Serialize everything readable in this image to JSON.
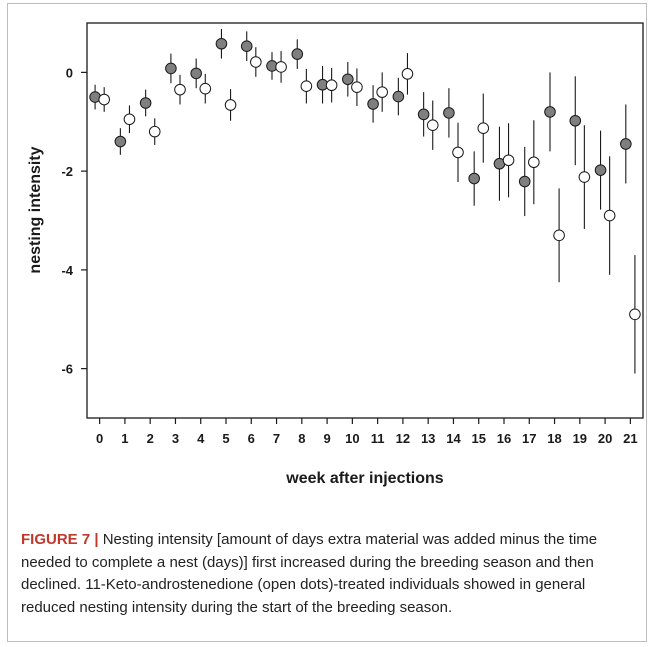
{
  "figure": {
    "caption_label": "FIGURE 7 |",
    "caption_text": " Nesting intensity [amount of days extra material was added minus the time needed to complete a nest (days)] first increased during the breeding season and then declined. 11-Keto-androstenedione (open dots)-treated individuals showed in general reduced nesting intensity during the start of the breeding season."
  },
  "colors": {
    "filled_dot": "#7f7f7f",
    "open_dot": "#ffffff",
    "stroke": "#1a1a1a"
  },
  "chart_data": {
    "type": "scatter",
    "xlabel": "week after injections",
    "ylabel": "nesting intensity",
    "ylim": [
      -7,
      1
    ],
    "xlim": [
      -0.5,
      21.5
    ],
    "x_ticks": [
      0,
      1,
      2,
      3,
      4,
      5,
      6,
      7,
      8,
      9,
      10,
      11,
      12,
      13,
      14,
      15,
      16,
      17,
      18,
      19,
      20,
      21
    ],
    "y_ticks": [
      0,
      -2,
      -4,
      -6
    ],
    "error_bars": true,
    "series": [
      {
        "marker": "filled",
        "x": [
          0,
          1,
          2,
          3,
          4,
          5,
          6,
          7,
          8,
          9,
          10,
          11,
          12,
          13,
          14,
          15,
          16,
          17,
          18,
          19,
          20,
          21
        ],
        "y": [
          -0.5,
          -1.4,
          -0.62,
          0.08,
          -0.02,
          0.58,
          0.53,
          0.13,
          0.37,
          -0.25,
          -0.14,
          -0.64,
          -0.49,
          -0.85,
          -0.82,
          -2.15,
          -1.85,
          -2.21,
          -0.8,
          -0.98,
          -1.98,
          -1.45
        ],
        "yerr": [
          0.25,
          0.27,
          0.27,
          0.3,
          0.3,
          0.3,
          0.3,
          0.28,
          0.3,
          0.38,
          0.35,
          0.38,
          0.38,
          0.45,
          0.5,
          0.55,
          0.75,
          0.7,
          0.8,
          0.9,
          0.8,
          0.8
        ]
      },
      {
        "marker": "open",
        "x": [
          0,
          1,
          2,
          3,
          4,
          5,
          6,
          7,
          8,
          9,
          10,
          11,
          12,
          13,
          14,
          15,
          16,
          17,
          18,
          19,
          20,
          21
        ],
        "y": [
          -0.55,
          -0.95,
          -1.2,
          -0.35,
          -0.33,
          -0.66,
          0.21,
          0.11,
          -0.28,
          -0.26,
          -0.3,
          -0.4,
          -0.03,
          -1.07,
          -1.62,
          -1.13,
          -1.78,
          -1.82,
          -3.3,
          -2.12,
          -2.9,
          -4.9
        ],
        "yerr": [
          0.25,
          0.28,
          0.27,
          0.3,
          0.3,
          0.32,
          0.3,
          0.32,
          0.35,
          0.35,
          0.38,
          0.4,
          0.42,
          0.5,
          0.6,
          0.7,
          0.75,
          0.85,
          0.95,
          1.05,
          1.2,
          1.2
        ]
      }
    ]
  }
}
